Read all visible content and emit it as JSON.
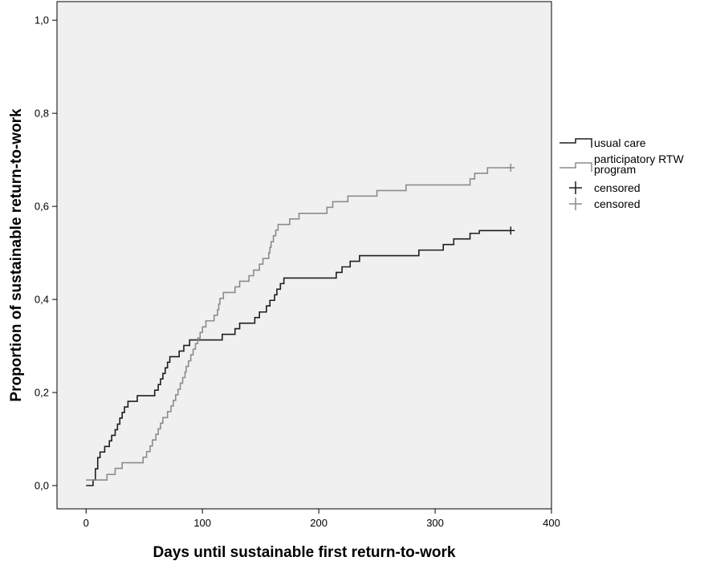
{
  "chart_data": {
    "type": "line",
    "subtype": "kaplan-meier-step",
    "title": "",
    "xlabel": "Days until sustainable first return-to-work",
    "ylabel": "Proportion of sustainable return-to-work",
    "xlim": [
      -25,
      400
    ],
    "ylim": [
      -0.05,
      1.04
    ],
    "x_ticks": [
      0,
      100,
      200,
      300,
      400
    ],
    "x_tick_labels": [
      "0",
      "100",
      "200",
      "300",
      "400"
    ],
    "y_ticks": [
      0,
      0.2,
      0.4,
      0.6,
      0.8,
      1.0
    ],
    "y_tick_labels": [
      "0,0",
      "0,2",
      "0,4",
      "0,6",
      "0,8",
      "1,0"
    ],
    "grid": false,
    "legend_position": "right",
    "plot_background": "#f0f0f0",
    "legend": [
      {
        "label": "usual care",
        "kind": "line",
        "color": "#1e1e1e"
      },
      {
        "label": "participatory RTW program",
        "kind": "line",
        "color": "#8c8c8c"
      },
      {
        "label": "censored",
        "kind": "marker",
        "color": "#1e1e1e"
      },
      {
        "label": "censored",
        "kind": "marker",
        "color": "#8c8c8c"
      }
    ],
    "series": [
      {
        "name": "usual care",
        "color": "#1e1e1e",
        "censored_at": {
          "x": 365,
          "y": 0.548
        },
        "points": [
          [
            0,
            0
          ],
          [
            6,
            0.012
          ],
          [
            8,
            0.036
          ],
          [
            10,
            0.06
          ],
          [
            12,
            0.072
          ],
          [
            16,
            0.084
          ],
          [
            20,
            0.096
          ],
          [
            22,
            0.108
          ],
          [
            25,
            0.12
          ],
          [
            27,
            0.132
          ],
          [
            29,
            0.145
          ],
          [
            31,
            0.157
          ],
          [
            33,
            0.169
          ],
          [
            36,
            0.181
          ],
          [
            44,
            0.193
          ],
          [
            59,
            0.205
          ],
          [
            62,
            0.217
          ],
          [
            64,
            0.229
          ],
          [
            66,
            0.241
          ],
          [
            68,
            0.253
          ],
          [
            70,
            0.265
          ],
          [
            72,
            0.277
          ],
          [
            80,
            0.289
          ],
          [
            84,
            0.301
          ],
          [
            89,
            0.313
          ],
          [
            117,
            0.325
          ],
          [
            128,
            0.337
          ],
          [
            132,
            0.349
          ],
          [
            145,
            0.361
          ],
          [
            149,
            0.373
          ],
          [
            155,
            0.386
          ],
          [
            158,
            0.398
          ],
          [
            162,
            0.41
          ],
          [
            164,
            0.422
          ],
          [
            167,
            0.434
          ],
          [
            170,
            0.446
          ],
          [
            215,
            0.458
          ],
          [
            220,
            0.47
          ],
          [
            227,
            0.482
          ],
          [
            235,
            0.494
          ],
          [
            286,
            0.506
          ],
          [
            307,
            0.518
          ],
          [
            316,
            0.53
          ],
          [
            330,
            0.542
          ],
          [
            338,
            0.548
          ],
          [
            365,
            0.548
          ]
        ]
      },
      {
        "name": "participatory RTW program",
        "color": "#8c8c8c",
        "censored_at": {
          "x": 365,
          "y": 0.683
        },
        "points": [
          [
            0,
            0.012
          ],
          [
            18,
            0.024
          ],
          [
            25,
            0.037
          ],
          [
            31,
            0.049
          ],
          [
            49,
            0.061
          ],
          [
            52,
            0.073
          ],
          [
            55,
            0.085
          ],
          [
            57,
            0.098
          ],
          [
            60,
            0.11
          ],
          [
            62,
            0.122
          ],
          [
            64,
            0.134
          ],
          [
            66,
            0.146
          ],
          [
            70,
            0.159
          ],
          [
            73,
            0.171
          ],
          [
            75,
            0.183
          ],
          [
            77,
            0.195
          ],
          [
            79,
            0.207
          ],
          [
            81,
            0.22
          ],
          [
            83,
            0.232
          ],
          [
            85,
            0.244
          ],
          [
            86,
            0.256
          ],
          [
            88,
            0.268
          ],
          [
            90,
            0.281
          ],
          [
            92,
            0.293
          ],
          [
            94,
            0.305
          ],
          [
            96,
            0.317
          ],
          [
            98,
            0.329
          ],
          [
            100,
            0.341
          ],
          [
            103,
            0.354
          ],
          [
            110,
            0.366
          ],
          [
            113,
            0.378
          ],
          [
            114,
            0.39
          ],
          [
            115,
            0.402
          ],
          [
            118,
            0.415
          ],
          [
            128,
            0.427
          ],
          [
            132,
            0.439
          ],
          [
            140,
            0.451
          ],
          [
            144,
            0.463
          ],
          [
            149,
            0.476
          ],
          [
            152,
            0.488
          ],
          [
            157,
            0.5
          ],
          [
            158,
            0.512
          ],
          [
            159,
            0.524
          ],
          [
            161,
            0.537
          ],
          [
            163,
            0.549
          ],
          [
            165,
            0.561
          ],
          [
            175,
            0.573
          ],
          [
            183,
            0.585
          ],
          [
            207,
            0.598
          ],
          [
            212,
            0.61
          ],
          [
            225,
            0.622
          ],
          [
            250,
            0.634
          ],
          [
            275,
            0.646
          ],
          [
            330,
            0.659
          ],
          [
            334,
            0.671
          ],
          [
            345,
            0.683
          ],
          [
            365,
            0.683
          ]
        ]
      }
    ]
  }
}
